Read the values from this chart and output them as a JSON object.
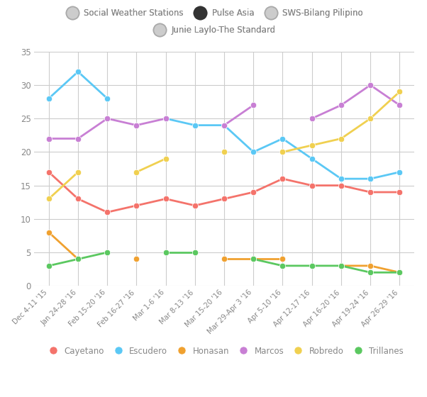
{
  "x_labels": [
    "Dec 4-11 '15",
    "Jan 24-28 '16",
    "Feb 15-20 '16",
    "Feb 16-27 '16",
    "Mar 1-6 '16",
    "Mar 8-13 '16",
    "Mar 15-20 '16",
    "Mar 29-Apr 3 '16",
    "Apr 5-10 '16",
    "Apr 12-17 '16",
    "Apr 16-20 '16",
    "Apr 19-24 '16",
    "Apr 26-29 '16"
  ],
  "series": {
    "Cayetano": {
      "color": "#f4736b",
      "values": [
        17,
        13,
        11,
        12,
        13,
        12,
        13,
        14,
        16,
        15,
        15,
        14,
        14
      ]
    },
    "Escudero": {
      "color": "#5bc8f5",
      "values": [
        28,
        32,
        28,
        null,
        25,
        24,
        24,
        20,
        22,
        19,
        16,
        16,
        17
      ]
    },
    "Honasan": {
      "color": "#f0a130",
      "values": [
        8,
        4,
        null,
        4,
        null,
        null,
        4,
        4,
        4,
        null,
        3,
        3,
        2
      ]
    },
    "Marcos": {
      "color": "#c87fd4",
      "values": [
        22,
        22,
        25,
        24,
        25,
        null,
        24,
        27,
        null,
        25,
        27,
        30,
        27
      ]
    },
    "Robredo": {
      "color": "#f0d050",
      "values": [
        13,
        17,
        null,
        17,
        19,
        null,
        20,
        null,
        20,
        21,
        22,
        25,
        29
      ]
    },
    "Trillanes": {
      "color": "#5bc860",
      "values": [
        3,
        4,
        5,
        null,
        5,
        5,
        null,
        4,
        3,
        3,
        3,
        2,
        2
      ]
    }
  },
  "ylim": [
    0,
    35
  ],
  "yticks": [
    0,
    5,
    10,
    15,
    20,
    25,
    30,
    35
  ],
  "legend_sources": [
    "Social Weather Stations",
    "Pulse Asia",
    "SWS-Bilang Pilipino",
    "Junie Laylo-The Standard"
  ],
  "source_marker_facecolors": [
    "#cccccc",
    "#333333",
    "#cccccc",
    "#cccccc"
  ],
  "source_marker_edgecolors": [
    "#aaaaaa",
    "#333333",
    "#aaaaaa",
    "#aaaaaa"
  ],
  "background_color": "#ffffff",
  "text_color": "#888888",
  "grid_color": "#cccccc"
}
